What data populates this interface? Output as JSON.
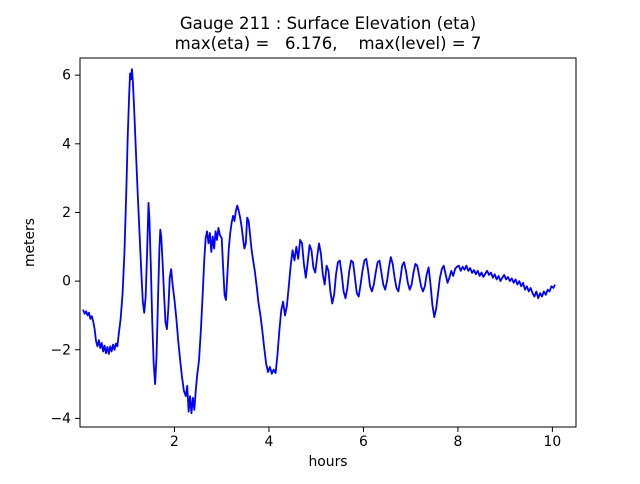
{
  "figure": {
    "kind": "matplotlib-figure",
    "background": "#ffffff"
  },
  "chart_data": {
    "type": "line",
    "title": "Gauge 211 : Surface Elevation (eta)",
    "subtitle": "max(eta) =   6.176,    max(level) = 7",
    "max_eta": 6.176,
    "max_level": 7,
    "xlabel": "hours",
    "ylabel": "meters",
    "xlim": [
      0,
      10.5
    ],
    "ylim": [
      -4.25,
      6.5
    ],
    "xtick_values": [
      2,
      4,
      6,
      8,
      10
    ],
    "xtick_labels": [
      "2",
      "4",
      "6",
      "8",
      "10"
    ],
    "ytick_values": [
      -4,
      -2,
      0,
      2,
      4,
      6
    ],
    "ytick_labels": [
      "−4",
      "−2",
      "0",
      "2",
      "4",
      "6"
    ],
    "grid": false,
    "legend": null,
    "line_color": "#0000ff",
    "spine_color": "#000000",
    "series": [
      {
        "name": "eta",
        "color": "#0000ff",
        "points": [
          [
            0.07,
            -0.85
          ],
          [
            0.1,
            -0.95
          ],
          [
            0.13,
            -0.88
          ],
          [
            0.16,
            -1.0
          ],
          [
            0.19,
            -0.92
          ],
          [
            0.22,
            -1.1
          ],
          [
            0.25,
            -1.02
          ],
          [
            0.28,
            -1.18
          ],
          [
            0.31,
            -1.4
          ],
          [
            0.34,
            -1.75
          ],
          [
            0.37,
            -1.9
          ],
          [
            0.4,
            -1.72
          ],
          [
            0.43,
            -1.95
          ],
          [
            0.46,
            -1.8
          ],
          [
            0.49,
            -2.05
          ],
          [
            0.52,
            -1.88
          ],
          [
            0.55,
            -2.1
          ],
          [
            0.58,
            -1.92
          ],
          [
            0.61,
            -2.12
          ],
          [
            0.64,
            -1.9
          ],
          [
            0.67,
            -2.05
          ],
          [
            0.7,
            -1.85
          ],
          [
            0.73,
            -2.0
          ],
          [
            0.76,
            -1.82
          ],
          [
            0.79,
            -1.9
          ],
          [
            0.82,
            -1.55
          ],
          [
            0.86,
            -1.1
          ],
          [
            0.9,
            -0.4
          ],
          [
            0.94,
            0.8
          ],
          [
            0.98,
            2.6
          ],
          [
            1.01,
            4.2
          ],
          [
            1.04,
            5.4
          ],
          [
            1.06,
            6.05
          ],
          [
            1.08,
            5.88
          ],
          [
            1.1,
            6.176
          ],
          [
            1.12,
            5.8
          ],
          [
            1.15,
            4.9
          ],
          [
            1.18,
            3.9
          ],
          [
            1.22,
            2.6
          ],
          [
            1.26,
            1.4
          ],
          [
            1.3,
            0.2
          ],
          [
            1.33,
            -0.6
          ],
          [
            1.36,
            -0.92
          ],
          [
            1.39,
            -0.45
          ],
          [
            1.42,
            0.8
          ],
          [
            1.45,
            2.28
          ],
          [
            1.47,
            1.8
          ],
          [
            1.5,
            0.4
          ],
          [
            1.53,
            -1.2
          ],
          [
            1.56,
            -2.4
          ],
          [
            1.59,
            -3.0
          ],
          [
            1.62,
            -2.2
          ],
          [
            1.65,
            -0.6
          ],
          [
            1.68,
            0.9
          ],
          [
            1.7,
            1.5
          ],
          [
            1.72,
            1.3
          ],
          [
            1.75,
            0.5
          ],
          [
            1.78,
            -0.4
          ],
          [
            1.81,
            -1.2
          ],
          [
            1.84,
            -1.4
          ],
          [
            1.87,
            -0.8
          ],
          [
            1.9,
            0.1
          ],
          [
            1.93,
            0.35
          ],
          [
            1.96,
            -0.1
          ],
          [
            2.0,
            -0.55
          ],
          [
            2.04,
            -1.1
          ],
          [
            2.08,
            -1.75
          ],
          [
            2.12,
            -2.3
          ],
          [
            2.16,
            -2.8
          ],
          [
            2.2,
            -3.2
          ],
          [
            2.24,
            -3.35
          ],
          [
            2.27,
            -3.05
          ],
          [
            2.3,
            -3.8
          ],
          [
            2.33,
            -3.35
          ],
          [
            2.36,
            -3.85
          ],
          [
            2.39,
            -3.4
          ],
          [
            2.42,
            -3.75
          ],
          [
            2.45,
            -3.2
          ],
          [
            2.48,
            -2.75
          ],
          [
            2.52,
            -2.3
          ],
          [
            2.56,
            -1.4
          ],
          [
            2.6,
            -0.3
          ],
          [
            2.63,
            0.6
          ],
          [
            2.66,
            1.25
          ],
          [
            2.69,
            1.45
          ],
          [
            2.72,
            1.1
          ],
          [
            2.75,
            1.4
          ],
          [
            2.78,
            0.85
          ],
          [
            2.81,
            1.3
          ],
          [
            2.84,
            0.95
          ],
          [
            2.87,
            1.45
          ],
          [
            2.9,
            1.2
          ],
          [
            2.93,
            1.55
          ],
          [
            2.96,
            1.35
          ],
          [
            3.0,
            1.25
          ],
          [
            3.03,
            0.4
          ],
          [
            3.06,
            -0.4
          ],
          [
            3.09,
            -0.55
          ],
          [
            3.12,
            0.2
          ],
          [
            3.15,
            0.95
          ],
          [
            3.18,
            1.4
          ],
          [
            3.21,
            1.7
          ],
          [
            3.24,
            1.9
          ],
          [
            3.27,
            1.75
          ],
          [
            3.3,
            2.05
          ],
          [
            3.33,
            2.2
          ],
          [
            3.36,
            2.05
          ],
          [
            3.39,
            1.85
          ],
          [
            3.42,
            1.6
          ],
          [
            3.45,
            1.25
          ],
          [
            3.48,
            0.95
          ],
          [
            3.51,
            1.1
          ],
          [
            3.54,
            1.85
          ],
          [
            3.57,
            1.75
          ],
          [
            3.6,
            1.35
          ],
          [
            3.63,
            0.95
          ],
          [
            3.66,
            0.65
          ],
          [
            3.7,
            0.3
          ],
          [
            3.74,
            -0.15
          ],
          [
            3.78,
            -0.65
          ],
          [
            3.82,
            -1.0
          ],
          [
            3.86,
            -1.45
          ],
          [
            3.9,
            -1.95
          ],
          [
            3.94,
            -2.4
          ],
          [
            3.98,
            -2.65
          ],
          [
            4.02,
            -2.5
          ],
          [
            4.06,
            -2.7
          ],
          [
            4.1,
            -2.58
          ],
          [
            4.14,
            -2.68
          ],
          [
            4.18,
            -2.15
          ],
          [
            4.22,
            -1.45
          ],
          [
            4.26,
            -0.85
          ],
          [
            4.3,
            -0.6
          ],
          [
            4.34,
            -1.0
          ],
          [
            4.38,
            -0.72
          ],
          [
            4.42,
            -0.15
          ],
          [
            4.46,
            0.45
          ],
          [
            4.5,
            0.9
          ],
          [
            4.54,
            0.6
          ],
          [
            4.58,
            1.0
          ],
          [
            4.62,
            0.65
          ],
          [
            4.66,
            1.2
          ],
          [
            4.7,
            1.1
          ],
          [
            4.74,
            0.5
          ],
          [
            4.78,
            0.1
          ],
          [
            4.82,
            0.55
          ],
          [
            4.86,
            1.05
          ],
          [
            4.9,
            0.9
          ],
          [
            4.94,
            0.4
          ],
          [
            4.98,
            0.25
          ],
          [
            5.02,
            0.7
          ],
          [
            5.06,
            1.1
          ],
          [
            5.1,
            0.8
          ],
          [
            5.14,
            0.2
          ],
          [
            5.18,
            -0.1
          ],
          [
            5.22,
            0.45
          ],
          [
            5.26,
            0.3
          ],
          [
            5.3,
            -0.3
          ],
          [
            5.34,
            -0.65
          ],
          [
            5.38,
            -0.4
          ],
          [
            5.42,
            0.2
          ],
          [
            5.46,
            0.55
          ],
          [
            5.5,
            0.6
          ],
          [
            5.54,
            0.2
          ],
          [
            5.58,
            -0.3
          ],
          [
            5.62,
            -0.5
          ],
          [
            5.66,
            -0.2
          ],
          [
            5.7,
            0.3
          ],
          [
            5.74,
            0.6
          ],
          [
            5.78,
            0.55
          ],
          [
            5.82,
            0.1
          ],
          [
            5.86,
            -0.35
          ],
          [
            5.9,
            -0.45
          ],
          [
            5.94,
            -0.1
          ],
          [
            5.98,
            0.3
          ],
          [
            6.02,
            0.6
          ],
          [
            6.06,
            0.65
          ],
          [
            6.1,
            0.3
          ],
          [
            6.14,
            -0.15
          ],
          [
            6.18,
            -0.3
          ],
          [
            6.22,
            -0.1
          ],
          [
            6.26,
            0.25
          ],
          [
            6.3,
            0.55
          ],
          [
            6.34,
            0.6
          ],
          [
            6.38,
            0.25
          ],
          [
            6.42,
            -0.1
          ],
          [
            6.46,
            -0.25
          ],
          [
            6.5,
            0.0
          ],
          [
            6.54,
            0.4
          ],
          [
            6.58,
            0.7
          ],
          [
            6.62,
            0.5
          ],
          [
            6.66,
            0.1
          ],
          [
            6.7,
            -0.2
          ],
          [
            6.74,
            -0.3
          ],
          [
            6.78,
            0.05
          ],
          [
            6.82,
            0.45
          ],
          [
            6.86,
            0.55
          ],
          [
            6.9,
            0.3
          ],
          [
            6.94,
            -0.05
          ],
          [
            6.98,
            -0.25
          ],
          [
            7.02,
            -0.1
          ],
          [
            7.06,
            0.25
          ],
          [
            7.1,
            0.5
          ],
          [
            7.14,
            0.45
          ],
          [
            7.18,
            0.15
          ],
          [
            7.22,
            -0.15
          ],
          [
            7.26,
            -0.3
          ],
          [
            7.3,
            -0.15
          ],
          [
            7.34,
            0.2
          ],
          [
            7.38,
            0.4
          ],
          [
            7.42,
            -0.1
          ],
          [
            7.46,
            -0.7
          ],
          [
            7.5,
            -1.05
          ],
          [
            7.54,
            -0.8
          ],
          [
            7.58,
            -0.35
          ],
          [
            7.62,
            0.1
          ],
          [
            7.66,
            0.35
          ],
          [
            7.7,
            0.45
          ],
          [
            7.74,
            0.2
          ],
          [
            7.78,
            -0.05
          ],
          [
            7.82,
            0.1
          ],
          [
            7.86,
            0.3
          ],
          [
            7.9,
            0.15
          ],
          [
            7.94,
            0.35
          ],
          [
            7.98,
            0.42
          ],
          [
            8.02,
            0.45
          ],
          [
            8.06,
            0.3
          ],
          [
            8.1,
            0.42
          ],
          [
            8.14,
            0.33
          ],
          [
            8.18,
            0.45
          ],
          [
            8.22,
            0.3
          ],
          [
            8.26,
            0.38
          ],
          [
            8.3,
            0.24
          ],
          [
            8.34,
            0.32
          ],
          [
            8.38,
            0.2
          ],
          [
            8.42,
            0.3
          ],
          [
            8.46,
            0.15
          ],
          [
            8.5,
            0.25
          ],
          [
            8.54,
            0.12
          ],
          [
            8.58,
            0.22
          ],
          [
            8.62,
            0.3
          ],
          [
            8.66,
            0.18
          ],
          [
            8.7,
            0.25
          ],
          [
            8.74,
            0.1
          ],
          [
            8.78,
            0.2
          ],
          [
            8.82,
            0.05
          ],
          [
            8.86,
            0.15
          ],
          [
            8.9,
            0.0
          ],
          [
            8.94,
            0.1
          ],
          [
            8.98,
            0.18
          ],
          [
            9.02,
            0.05
          ],
          [
            9.06,
            0.12
          ],
          [
            9.1,
            0.0
          ],
          [
            9.14,
            0.08
          ],
          [
            9.18,
            -0.05
          ],
          [
            9.22,
            0.05
          ],
          [
            9.26,
            -0.1
          ],
          [
            9.3,
            0.0
          ],
          [
            9.34,
            -0.15
          ],
          [
            9.38,
            -0.05
          ],
          [
            9.42,
            -0.25
          ],
          [
            9.46,
            -0.15
          ],
          [
            9.5,
            -0.3
          ],
          [
            9.54,
            -0.2
          ],
          [
            9.58,
            -0.35
          ],
          [
            9.62,
            -0.45
          ],
          [
            9.66,
            -0.3
          ],
          [
            9.7,
            -0.5
          ],
          [
            9.74,
            -0.35
          ],
          [
            9.78,
            -0.45
          ],
          [
            9.82,
            -0.3
          ],
          [
            9.86,
            -0.4
          ],
          [
            9.9,
            -0.25
          ],
          [
            9.94,
            -0.3
          ],
          [
            9.98,
            -0.15
          ],
          [
            10.02,
            -0.2
          ],
          [
            10.05,
            -0.12
          ]
        ]
      }
    ]
  }
}
